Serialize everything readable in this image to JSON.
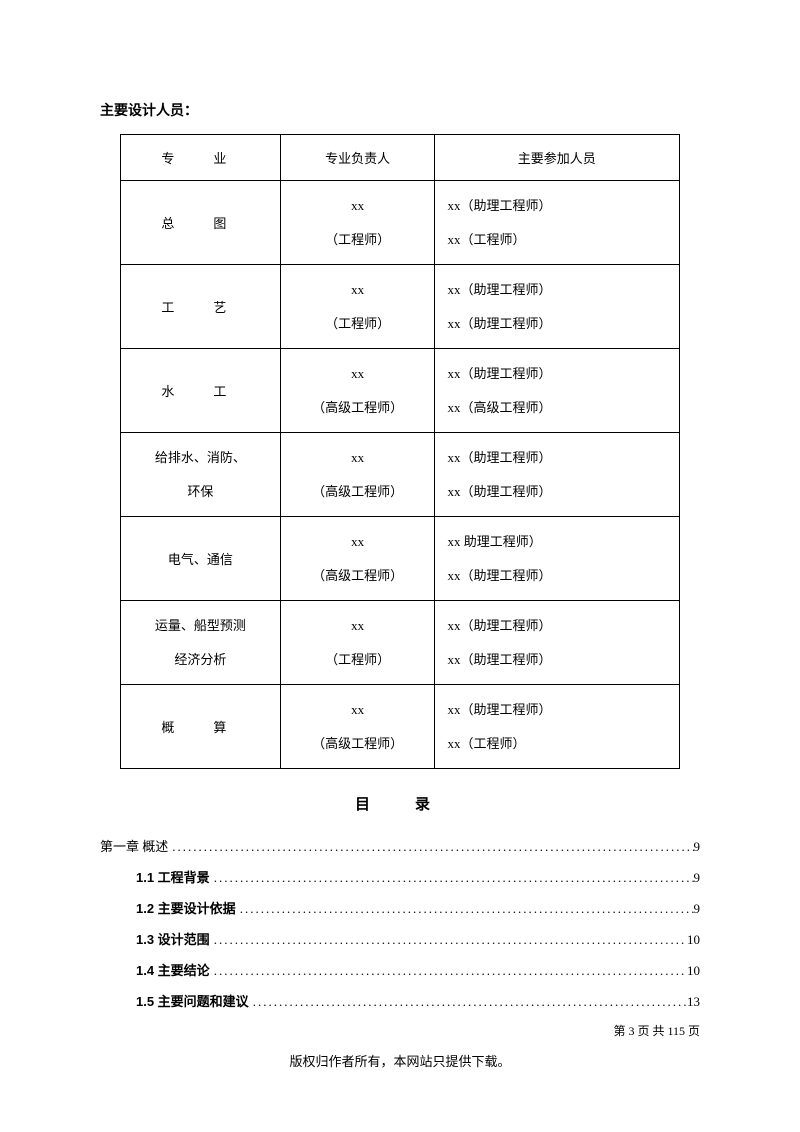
{
  "section_title": "主要设计人员：",
  "table": {
    "headers": {
      "col1": "专　业",
      "col2": "专业负责人",
      "col3": "主要参加人员"
    },
    "rows": [
      {
        "specialty": "总　图",
        "lead_name": "xx",
        "lead_title": "（工程师）",
        "part1": "xx（助理工程师）",
        "part2": "xx（工程师）"
      },
      {
        "specialty": "工　艺",
        "lead_name": "xx",
        "lead_title": "（工程师）",
        "part1": "xx（助理工程师）",
        "part2": "xx（助理工程师）"
      },
      {
        "specialty": "水　工",
        "lead_name": "xx",
        "lead_title": "（高级工程师）",
        "part1": "xx（助理工程师）",
        "part2": "xx（高级工程师）"
      },
      {
        "specialty_line1": "给排水、消防、",
        "specialty_line2": "环保",
        "lead_name": "xx",
        "lead_title": "（高级工程师）",
        "part1": "xx（助理工程师）",
        "part2": "xx（助理工程师）"
      },
      {
        "specialty": "电气、通信",
        "lead_name": "xx",
        "lead_title": "（高级工程师）",
        "part1": "xx 助理工程师）",
        "part2": "xx（助理工程师）"
      },
      {
        "specialty_line1": "运量、船型预测",
        "specialty_line2": "经济分析",
        "lead_name": "xx",
        "lead_title": "（工程师）",
        "part1": "xx（助理工程师）",
        "part2": "xx（助理工程师）"
      },
      {
        "specialty": "概　算",
        "lead_name": "xx",
        "lead_title": "（高级工程师）",
        "part1": "xx（助理工程师）",
        "part2": "xx（工程师）"
      }
    ]
  },
  "toc_title": "目　录",
  "toc": [
    {
      "label": "第一章 概述",
      "page": "9",
      "indent": false,
      "bold": false
    },
    {
      "label": "1.1 工程背景",
      "page": "9",
      "indent": true,
      "bold": true
    },
    {
      "label": "1.2 主要设计依据",
      "page": "9",
      "indent": true,
      "bold": true
    },
    {
      "label": "1.3 设计范围",
      "page": "10",
      "indent": true,
      "bold": true
    },
    {
      "label": "1.4 主要结论",
      "page": "10",
      "indent": true,
      "bold": true
    },
    {
      "label": "1.5 主要问题和建议",
      "page": "13",
      "indent": true,
      "bold": true
    }
  ],
  "footer": "第 3 页 共 115 页",
  "bottom_note": "版权归作者所有，本网站只提供下载。"
}
